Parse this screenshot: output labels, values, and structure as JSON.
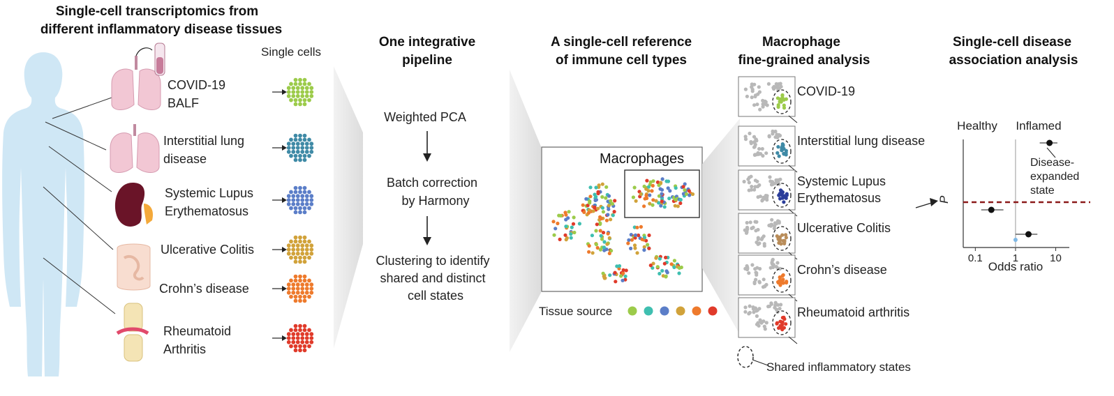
{
  "panels": {
    "tissues": {
      "title_line1": "Single-cell transcriptomics from",
      "title_line2": "different inflammatory disease tissues",
      "single_cells_label": "Single cells"
    },
    "pipeline": {
      "title_line1": "One integrative",
      "title_line2": "pipeline",
      "step1": "Weighted PCA",
      "step2_line1": "Batch correction",
      "step2_line2": "by Harmony",
      "step3_line1": "Clustering to identify",
      "step3_line2": "shared and distinct",
      "step3_line3": "cell states"
    },
    "reference": {
      "title_line1": "A single-cell reference",
      "title_line2": "of immune cell types",
      "box_label": "Macrophages",
      "tissue_source_label": "Tissue source"
    },
    "macrophage": {
      "title_line1": "Macrophage",
      "title_line2": "fine-grained analysis",
      "shared_states_label": "Shared inflammatory states"
    },
    "association": {
      "title_line1": "Single-cell disease",
      "title_line2": "association analysis",
      "healthy_label": "Healthy",
      "inflamed_label": "Inflamed",
      "annotation_line1": "Disease-",
      "annotation_line2": "expanded",
      "annotation_line3": "state",
      "y_label": "P",
      "x_label": "Odds ratio",
      "ticks": [
        "0.1",
        "1",
        "10"
      ]
    }
  },
  "tissues": [
    {
      "line1": "COVID-19",
      "line2": "BALF",
      "color": "#9ccb4a",
      "organ": "lungs-icon"
    },
    {
      "line1": "Interstitial lung",
      "line2": "disease",
      "color": "#3f8aa6",
      "organ": "lungs-icon"
    },
    {
      "line1": "Systemic Lupus",
      "line2": "Erythematosus",
      "color": "#5b7ec8",
      "organ": "kidney-icon"
    },
    {
      "line1": "Ulcerative Colitis",
      "line2": "",
      "color": "#d1a23a",
      "organ": "intestine-icon"
    },
    {
      "line1": "Crohn’s disease",
      "line2": "",
      "color": "#ee7a2c",
      "organ": "intestine-icon"
    },
    {
      "line1": "Rheumatoid",
      "line2": "Arthritis",
      "color": "#e03a2a",
      "organ": "joint-icon"
    }
  ],
  "macrophage_states": [
    {
      "line1": "COVID-19",
      "line2": "",
      "color": "#9ccb4a"
    },
    {
      "line1": "Interstitial lung disease",
      "line2": "",
      "color": "#3f8aa6"
    },
    {
      "line1": "Systemic Lupus",
      "line2": "Erythematosus",
      "color": "#2b3d9a"
    },
    {
      "line1": "Ulcerative Colitis",
      "line2": "",
      "color": "#b98d5a"
    },
    {
      "line1": "Crohn’s disease",
      "line2": "",
      "color": "#ee7a2c"
    },
    {
      "line1": "Rheumatoid arthritis",
      "line2": "",
      "color": "#e03a2a"
    }
  ],
  "tissue_source_colors": [
    "#9ccb4a",
    "#3fbfb0",
    "#5b7ec8",
    "#d1a23a",
    "#ee7a2c",
    "#e03a2a"
  ],
  "forest_plot": {
    "x_scale": "log",
    "x_range": [
      0.05,
      30
    ],
    "reference_line": 1,
    "points": [
      {
        "or": 7,
        "lo": 4,
        "hi": 11,
        "state": "disease-expanded",
        "color": "#111111"
      },
      {
        "or": 0.25,
        "lo": 0.14,
        "hi": 0.5,
        "state": "depleted",
        "color": "#111111"
      },
      {
        "or": 2.1,
        "lo": 1,
        "hi": 3.5,
        "state": "shared",
        "color": "#111111"
      },
      {
        "or": 1,
        "lo": 1,
        "hi": 1,
        "state": "neutral",
        "color": "#7fb9e6"
      }
    ],
    "threshold_color": "#8b1a1a"
  }
}
